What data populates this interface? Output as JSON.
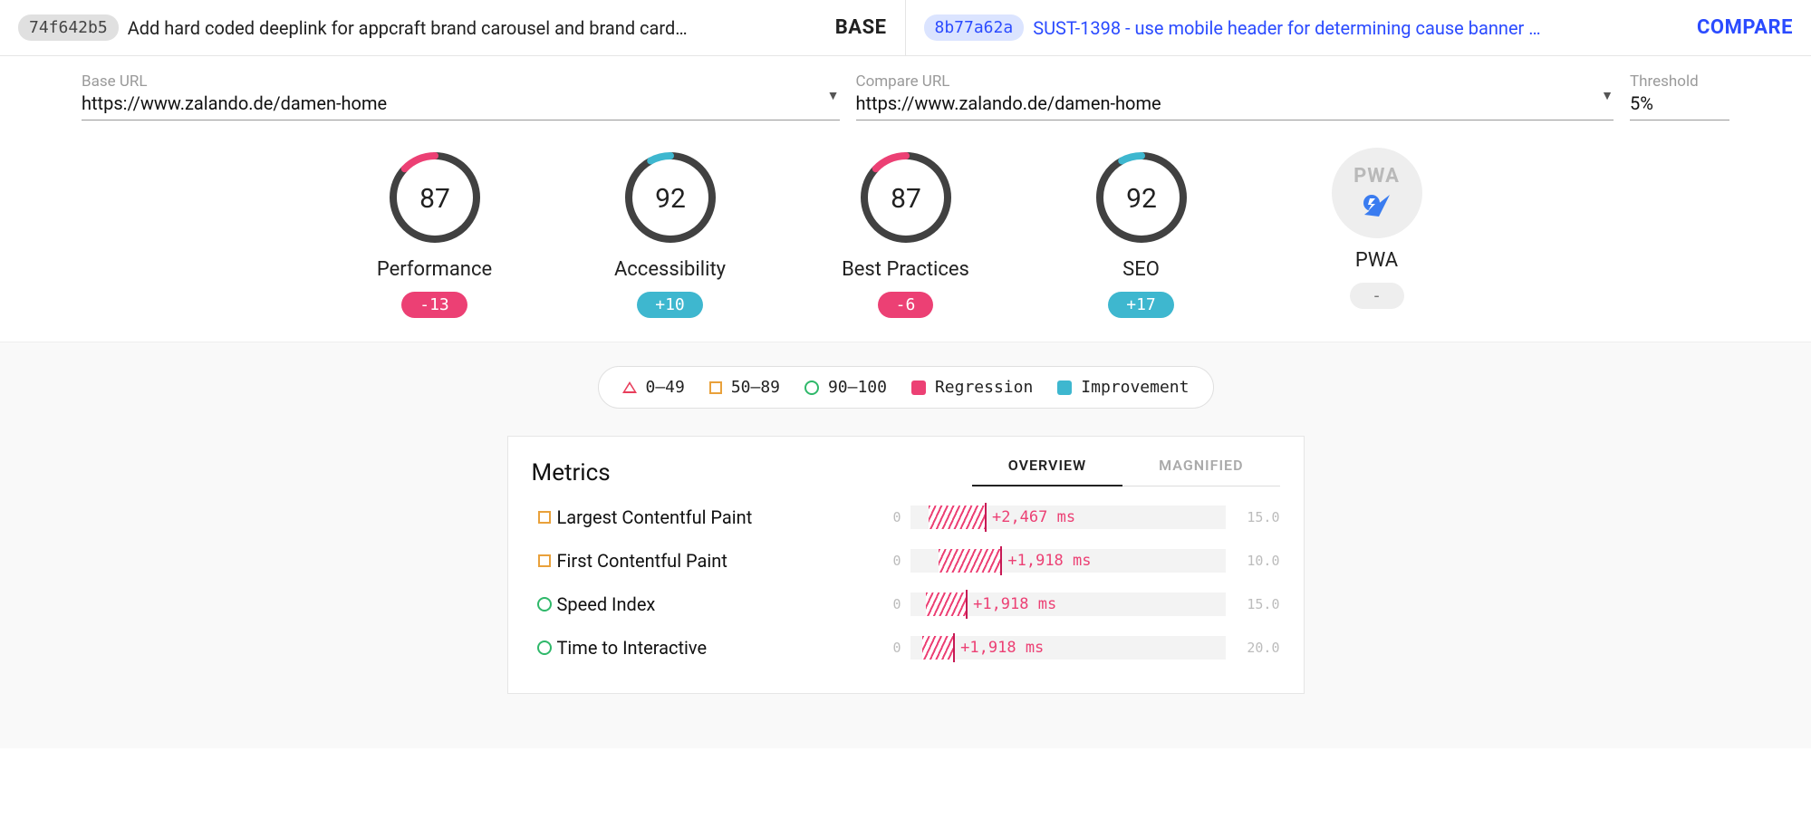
{
  "palette": {
    "regression": "#ec4074",
    "improvement": "#3eb7cf",
    "fail_triangle": "#e83e5b",
    "mid_square": "#e9a13b",
    "pass_circle": "#2fb86a",
    "gauge_track": "#414141",
    "text": "#212121",
    "muted": "#9a9a9a",
    "card_border": "#e6e6e6",
    "bar_bg": "#f3f3f3"
  },
  "topbar": {
    "base": {
      "hash": "74f642b5",
      "msg": "Add hard coded deeplink for appcraft brand carousel and brand card…",
      "role": "BASE"
    },
    "compare": {
      "hash": "8b77a62a",
      "msg": "SUST-1398 - use mobile header for determining cause banner …",
      "role": "COMPARE"
    }
  },
  "fields": {
    "base_url": {
      "label": "Base URL",
      "value": "https://www.zalando.de/damen-home"
    },
    "compare_url": {
      "label": "Compare URL",
      "value": "https://www.zalando.de/damen-home"
    },
    "threshold": {
      "label": "Threshold",
      "value": "5%"
    }
  },
  "gauges": [
    {
      "key": "performance",
      "title": "Performance",
      "score": 87,
      "delta": "-13",
      "delta_kind": "neg",
      "arc_color": "#ec4074",
      "arc_pct": 87
    },
    {
      "key": "accessibility",
      "title": "Accessibility",
      "score": 92,
      "delta": "+10",
      "delta_kind": "pos",
      "arc_color": "#3eb7cf",
      "arc_pct": 92
    },
    {
      "key": "best-practices",
      "title": "Best Practices",
      "score": 87,
      "delta": "-6",
      "delta_kind": "neg",
      "arc_color": "#ec4074",
      "arc_pct": 87
    },
    {
      "key": "seo",
      "title": "SEO",
      "score": 92,
      "delta": "+17",
      "delta_kind": "pos",
      "arc_color": "#3eb7cf",
      "arc_pct": 92
    },
    {
      "key": "pwa",
      "title": "PWA",
      "score": null,
      "delta": "-",
      "delta_kind": "none"
    }
  ],
  "legend": {
    "ranges": [
      {
        "shape": "triangle",
        "color": "#e83e5b",
        "label": "0–49"
      },
      {
        "shape": "square",
        "color": "#e9a13b",
        "label": "50–89"
      },
      {
        "shape": "circle",
        "color": "#2fb86a",
        "label": "90–100"
      }
    ],
    "change": [
      {
        "color": "#ec4074",
        "label": "Regression"
      },
      {
        "color": "#3eb7cf",
        "label": "Improvement"
      }
    ]
  },
  "metrics_card": {
    "title": "Metrics",
    "tabs": [
      {
        "key": "overview",
        "label": "OVERVIEW",
        "active": true
      },
      {
        "key": "magnified",
        "label": "MAGNIFIED",
        "active": false
      }
    ],
    "rows": [
      {
        "shape": "square",
        "shape_color": "#e9a13b",
        "name": "Largest Contentful Paint",
        "min": "0",
        "max": "15.0",
        "bar_start_pct": 6,
        "bar_width_pct": 18,
        "delta": "+2,467 ms",
        "kind": "reg"
      },
      {
        "shape": "square",
        "shape_color": "#e9a13b",
        "name": "First Contentful Paint",
        "min": "0",
        "max": "10.0",
        "bar_start_pct": 9,
        "bar_width_pct": 20,
        "delta": "+1,918 ms",
        "kind": "reg"
      },
      {
        "shape": "circle",
        "shape_color": "#2fb86a",
        "name": "Speed Index",
        "min": "0",
        "max": "15.0",
        "bar_start_pct": 5,
        "bar_width_pct": 13,
        "delta": "+1,918 ms",
        "kind": "reg"
      },
      {
        "shape": "circle",
        "shape_color": "#2fb86a",
        "name": "Time to Interactive",
        "min": "0",
        "max": "20.0",
        "bar_start_pct": 4,
        "bar_width_pct": 10,
        "delta": "+1,918 ms",
        "kind": "reg"
      }
    ]
  }
}
